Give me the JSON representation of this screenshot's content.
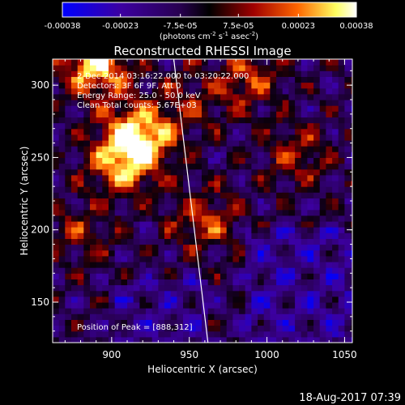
{
  "chart_data": {
    "type": "heatmap",
    "title": "Reconstructed RHESSI Image",
    "xlabel": "Heliocentric X (arcsec)",
    "ylabel": "Heliocentric Y (arcsec)",
    "xlim": [
      862,
      1055
    ],
    "ylim": [
      122,
      318
    ],
    "xticks": [
      900,
      950,
      1000,
      1050
    ],
    "yticks": [
      150,
      200,
      250,
      300
    ],
    "colorbar": {
      "range": [
        -0.00038,
        0.00038
      ],
      "ticks": [
        "-0.00038",
        "-0.00023",
        "-7.5e-05",
        "7.5e-05",
        "0.00023",
        "0.00038"
      ],
      "units": "(photons cm-2 s-1 asec-2)",
      "colors": [
        "#0000ff",
        "#3c00a0",
        "#280050",
        "#000000",
        "#a00000",
        "#ff6600",
        "#ffff60",
        "#ffffff"
      ]
    },
    "annotations": [
      " 2-Dec-2014 03:16:22.000 to 03:20:22.000",
      "Detectors: 3F 6F 9F, Att 0",
      "Energy Range: 25.0 - 50.0 keV",
      "Clean    Total counts: 5.67E+03"
    ],
    "peak_label": "Position of Peak = [888,312]",
    "peak_position": [
      888,
      312
    ],
    "limb_line": [
      [
        940,
        318
      ],
      [
        962,
        122
      ]
    ],
    "hot_spots": [
      {
        "x": 888,
        "y": 312,
        "strength": 1.0
      },
      {
        "x": 915,
        "y": 262,
        "strength": 0.95
      },
      {
        "x": 905,
        "y": 245,
        "strength": 0.7
      },
      {
        "x": 985,
        "y": 302,
        "strength": 0.55
      },
      {
        "x": 958,
        "y": 205,
        "strength": 0.55
      },
      {
        "x": 1018,
        "y": 250,
        "strength": 0.45
      },
      {
        "x": 878,
        "y": 195,
        "strength": 0.4
      },
      {
        "x": 945,
        "y": 285,
        "strength": 0.35
      }
    ]
  },
  "timestamp": "18-Aug-2017 07:39"
}
